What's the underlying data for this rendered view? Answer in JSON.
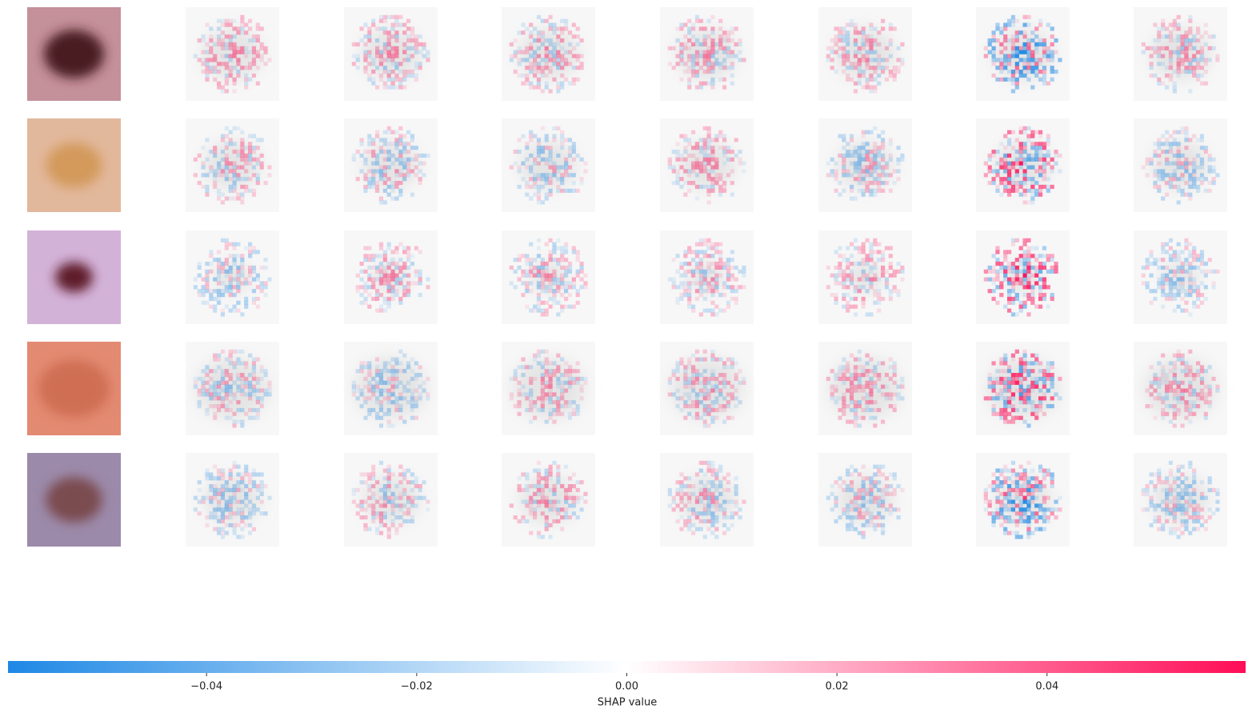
{
  "chart_data": {
    "type": "image",
    "xlabel": "SHAP value",
    "xlim": [
      -0.0589,
      0.0589
    ],
    "xticks": [
      {
        "value": -0.04,
        "label": "−0.04"
      },
      {
        "value": -0.02,
        "label": "−0.02"
      },
      {
        "value": 0,
        "label": "0.00"
      },
      {
        "value": 0.02,
        "label": "0.02"
      },
      {
        "value": 0.04,
        "label": "0.04"
      }
    ],
    "colors": {
      "negative": "#1E88E5",
      "zero": "#ffffff",
      "positive": "#FF0D57"
    }
  }
}
